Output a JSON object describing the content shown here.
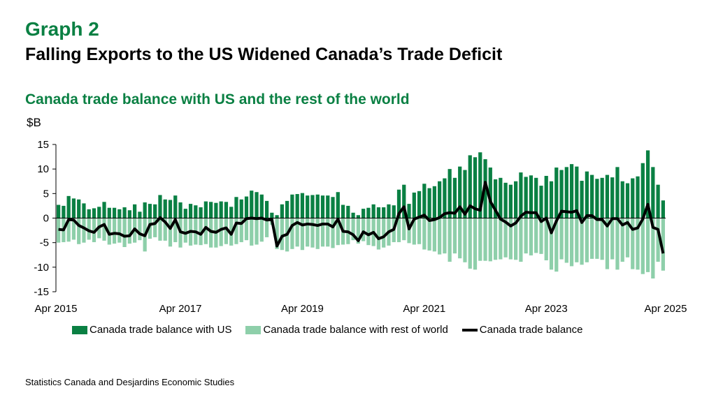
{
  "header": {
    "graph_label": "Graph 2",
    "title": "Falling Exports to the US Widened Canada’s Trade Deficit",
    "subtitle": "Canada trade balance with US and the rest of the world",
    "unit": "$B"
  },
  "source": "Statistics Canada and Desjardins Economic Studies",
  "colors": {
    "us": "#0a8043",
    "row": "#8ecfaa",
    "total": "#000000"
  },
  "chart_data": {
    "type": "bar",
    "title": "Canada trade balance with US and the rest of the world",
    "ylabel": "$B",
    "ylim": [
      -15,
      15
    ],
    "yticks": [
      15,
      10,
      5,
      0,
      -5,
      -10,
      -15
    ],
    "xtick_labels": [
      "Apr 2015",
      "Apr 2017",
      "Apr 2019",
      "Apr 2021",
      "Apr 2023",
      "Apr 2025"
    ],
    "x_start": "Apr 2015",
    "x_end": "Apr 2025",
    "grid": false,
    "legend_position": "bottom",
    "series": [
      {
        "name": "Canada trade balance with US",
        "type": "bar",
        "color": "#0a8043",
        "values": [
          2.7,
          2.5,
          4.5,
          4.0,
          3.8,
          3.0,
          1.8,
          2.0,
          2.3,
          3.3,
          2.1,
          2.1,
          1.8,
          2.2,
          1.6,
          2.8,
          1.3,
          3.2,
          2.9,
          2.8,
          4.7,
          3.8,
          3.7,
          4.6,
          3.2,
          1.9,
          2.9,
          2.6,
          2.2,
          3.4,
          3.3,
          3.1,
          3.4,
          3.3,
          2.3,
          4.3,
          3.8,
          4.4,
          5.6,
          5.3,
          4.8,
          3.5,
          1.1,
          0.6,
          2.8,
          3.5,
          4.8,
          4.9,
          5.1,
          4.6,
          4.7,
          4.8,
          4.6,
          4.6,
          4.3,
          5.3,
          2.7,
          2.5,
          1.1,
          0.6,
          1.9,
          2.1,
          2.8,
          2.2,
          2.2,
          2.8,
          2.6,
          5.8,
          6.8,
          2.9,
          5.2,
          5.5,
          7.0,
          6.1,
          6.5,
          7.5,
          8.1,
          10.0,
          8.2,
          10.5,
          9.8,
          12.8,
          12.4,
          13.4,
          12.0,
          10.3,
          7.9,
          8.2,
          7.2,
          6.8,
          7.5,
          9.3,
          8.4,
          8.7,
          8.2,
          6.6,
          8.6,
          7.5,
          10.3,
          9.8,
          10.4,
          11.0,
          10.5,
          7.6,
          9.5,
          8.8,
          8.0,
          8.2,
          8.8,
          8.3,
          10.4,
          7.5,
          7.1,
          8.1,
          8.5,
          11.2,
          13.8,
          10.4,
          6.8,
          3.6
        ]
      },
      {
        "name": "Canada trade balance with rest of world",
        "type": "bar",
        "color": "#8ecfaa",
        "values": [
          -5.0,
          -4.9,
          -4.8,
          -4.4,
          -5.3,
          -5.0,
          -4.4,
          -4.9,
          -4.1,
          -4.6,
          -5.4,
          -5.2,
          -5.0,
          -5.9,
          -5.2,
          -5.0,
          -4.5,
          -6.8,
          -4.2,
          -3.9,
          -4.6,
          -4.6,
          -5.8,
          -4.9,
          -6.0,
          -5.0,
          -5.6,
          -5.4,
          -5.5,
          -5.3,
          -6.0,
          -6.0,
          -5.7,
          -5.3,
          -5.6,
          -5.3,
          -4.9,
          -4.5,
          -5.6,
          -5.4,
          -4.8,
          -3.9,
          -1.4,
          -6.3,
          -6.5,
          -6.8,
          -6.3,
          -5.8,
          -6.5,
          -5.8,
          -6.0,
          -6.3,
          -5.8,
          -5.8,
          -6.1,
          -5.5,
          -5.4,
          -5.3,
          -4.5,
          -5.2,
          -4.7,
          -5.5,
          -5.7,
          -6.4,
          -6.0,
          -5.6,
          -4.9,
          -4.9,
          -4.5,
          -5.1,
          -5.4,
          -5.3,
          -6.4,
          -6.6,
          -6.8,
          -7.4,
          -7.2,
          -8.9,
          -7.2,
          -8.2,
          -9.0,
          -10.3,
          -10.5,
          -8.7,
          -8.7,
          -8.8,
          -8.5,
          -8.4,
          -8.0,
          -8.4,
          -8.5,
          -8.9,
          -7.2,
          -7.6,
          -7.1,
          -7.3,
          -8.6,
          -10.5,
          -10.9,
          -8.4,
          -9.1,
          -9.8,
          -9.0,
          -9.5,
          -9.0,
          -8.3,
          -8.3,
          -8.5,
          -10.4,
          -8.4,
          -10.5,
          -8.9,
          -8.0,
          -10.4,
          -10.5,
          -11.4,
          -11.0,
          -12.3,
          -8.9,
          -10.7
        ]
      },
      {
        "name": "Canada trade balance",
        "type": "line",
        "color": "#000000",
        "values": [
          -2.3,
          -2.4,
          -0.3,
          -0.4,
          -1.5,
          -2.0,
          -2.6,
          -2.9,
          -1.8,
          -1.3,
          -3.3,
          -3.1,
          -3.2,
          -3.7,
          -3.6,
          -2.2,
          -3.2,
          -3.6,
          -1.3,
          -1.1,
          0.1,
          -0.8,
          -2.1,
          -0.3,
          -2.8,
          -3.1,
          -2.7,
          -2.8,
          -3.3,
          -1.9,
          -2.7,
          -2.9,
          -2.3,
          -2.0,
          -3.3,
          -1.0,
          -1.1,
          -0.1,
          0.0,
          -0.1,
          0.0,
          -0.4,
          -0.3,
          -5.7,
          -3.7,
          -3.3,
          -1.5,
          -0.9,
          -1.4,
          -1.2,
          -1.3,
          -1.5,
          -1.2,
          -1.2,
          -1.8,
          -0.2,
          -2.7,
          -2.8,
          -3.4,
          -4.6,
          -2.8,
          -3.4,
          -2.9,
          -4.2,
          -3.8,
          -2.8,
          -2.3,
          0.9,
          2.3,
          -2.2,
          -0.2,
          0.2,
          0.6,
          -0.5,
          -0.3,
          0.1,
          0.9,
          1.1,
          1.0,
          2.3,
          0.8,
          2.5,
          1.9,
          1.6,
          7.3,
          3.4,
          1.6,
          -0.2,
          -0.8,
          -1.6,
          -1.0,
          0.4,
          1.2,
          1.1,
          1.1,
          -0.7,
          0.0,
          -3.0,
          -0.6,
          1.4,
          1.3,
          1.2,
          1.5,
          -0.9,
          0.5,
          0.5,
          -0.3,
          -0.3,
          -1.6,
          -0.1,
          -0.1,
          -1.4,
          -0.9,
          -2.3,
          -2.0,
          -0.2,
          2.8,
          -1.9,
          -2.3,
          -7.2
        ]
      }
    ]
  }
}
